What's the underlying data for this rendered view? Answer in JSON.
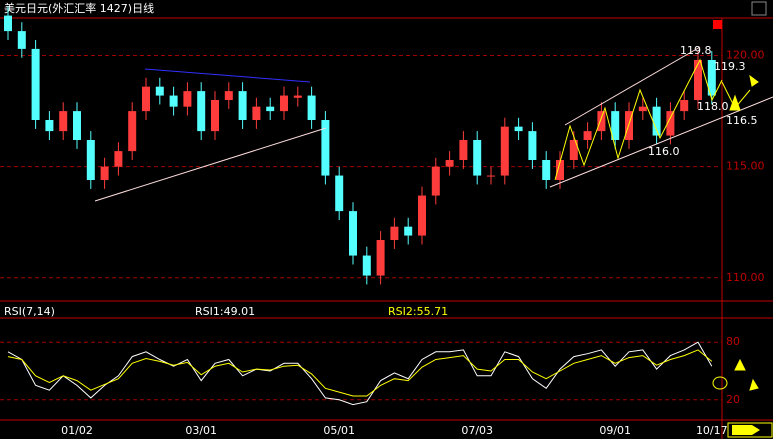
{
  "chart_data": [
    {
      "type": "candlestick",
      "title": "美元日元(外汇汇率 1427)日线",
      "categories": [
        null,
        null,
        null,
        null,
        null,
        "01/02",
        null,
        null,
        null,
        null,
        null,
        null,
        null,
        null,
        "03/01",
        null,
        null,
        null,
        null,
        null,
        null,
        null,
        null,
        null,
        "05/01",
        null,
        null,
        null,
        null,
        null,
        null,
        null,
        null,
        null,
        "07/03",
        null,
        null,
        null,
        null,
        null,
        null,
        null,
        null,
        null,
        "09/01",
        null,
        null,
        null,
        null,
        null,
        null,
        "10/17"
      ],
      "open": [
        121.8,
        121.1,
        120.3,
        117.1,
        116.6,
        117.5,
        116.2,
        114.4,
        115.0,
        115.7,
        117.5,
        118.6,
        118.2,
        117.7,
        118.4,
        116.6,
        118.0,
        118.4,
        117.1,
        117.7,
        117.5,
        118.1,
        118.2,
        117.1,
        114.6,
        113.0,
        111.0,
        110.1,
        111.7,
        112.3,
        111.9,
        113.7,
        115.0,
        115.3,
        116.2,
        114.6,
        114.6,
        116.8,
        116.6,
        115.3,
        114.4,
        115.3,
        116.2,
        116.6,
        117.5,
        116.2,
        117.5,
        117.7,
        116.4,
        117.5,
        118.0,
        119.8
      ],
      "high": [
        122.2,
        121.5,
        120.7,
        117.5,
        117.9,
        117.9,
        116.6,
        115.4,
        116.1,
        117.9,
        119.0,
        119.0,
        118.6,
        118.8,
        118.8,
        118.4,
        118.8,
        118.8,
        118.1,
        118.1,
        118.6,
        118.6,
        118.6,
        117.5,
        115.0,
        113.4,
        111.4,
        112.1,
        112.7,
        112.7,
        114.1,
        115.4,
        115.7,
        116.6,
        116.6,
        115.0,
        117.2,
        117.2,
        117.0,
        115.7,
        115.7,
        116.6,
        117.0,
        117.9,
        117.9,
        117.9,
        118.1,
        118.1,
        117.9,
        118.4,
        120.2,
        120.2
      ],
      "low": [
        120.7,
        119.9,
        116.7,
        116.2,
        116.2,
        115.8,
        114.0,
        114.0,
        114.6,
        115.3,
        117.1,
        117.8,
        117.3,
        117.3,
        116.2,
        116.2,
        117.6,
        116.7,
        116.7,
        117.1,
        117.1,
        117.7,
        116.7,
        114.2,
        112.6,
        110.6,
        109.7,
        109.7,
        111.3,
        111.5,
        111.5,
        113.3,
        114.6,
        114.9,
        114.2,
        114.2,
        114.2,
        116.2,
        114.9,
        114.0,
        114.0,
        114.9,
        115.8,
        116.2,
        115.8,
        115.8,
        117.1,
        116.0,
        116.0,
        117.1,
        117.6,
        117.8
      ],
      "close": [
        121.1,
        120.3,
        117.1,
        116.6,
        117.5,
        116.2,
        114.4,
        115.0,
        115.7,
        117.5,
        118.6,
        118.2,
        117.7,
        118.4,
        116.6,
        118.0,
        118.4,
        117.1,
        117.7,
        117.5,
        118.2,
        118.2,
        117.1,
        114.6,
        113.0,
        111.0,
        110.1,
        111.7,
        112.3,
        111.9,
        113.7,
        115.0,
        115.3,
        116.2,
        114.6,
        114.6,
        116.8,
        116.6,
        115.3,
        114.4,
        115.3,
        116.2,
        116.6,
        117.5,
        116.2,
        117.5,
        117.7,
        116.4,
        117.5,
        118.0,
        119.8,
        118.2
      ],
      "up_color": "#ff3c3c",
      "down_color": "#54ffff",
      "ylim": [
        109,
        121.6
      ],
      "yticks": [
        {
          "value": 120,
          "label": "120.00"
        },
        {
          "value": 115,
          "label": "115.00"
        },
        {
          "value": 110,
          "label": "110.00"
        }
      ],
      "grid": true,
      "annotations": [
        "119.8",
        "119.3",
        "118.0",
        "116.5",
        "116.0"
      ]
    },
    {
      "type": "line",
      "title": "RSI(7,14)",
      "series": [
        {
          "name": "RSI1:49.01",
          "color": "#ffffff",
          "values": [
            70,
            62,
            35,
            30,
            45,
            35,
            22,
            35,
            45,
            65,
            70,
            62,
            55,
            62,
            40,
            58,
            62,
            45,
            52,
            50,
            58,
            58,
            42,
            22,
            20,
            15,
            18,
            40,
            48,
            42,
            62,
            70,
            70,
            72,
            45,
            45,
            70,
            65,
            42,
            32,
            52,
            65,
            68,
            72,
            55,
            70,
            72,
            52,
            66,
            72,
            80,
            55
          ]
        },
        {
          "name": "RSI2:55.71",
          "color": "#ffff00",
          "values": [
            65,
            62,
            45,
            38,
            45,
            40,
            30,
            36,
            42,
            58,
            63,
            60,
            56,
            59,
            46,
            55,
            58,
            49,
            52,
            51,
            55,
            56,
            47,
            32,
            28,
            24,
            24,
            35,
            42,
            40,
            54,
            62,
            64,
            66,
            52,
            50,
            62,
            62,
            49,
            42,
            50,
            58,
            62,
            66,
            58,
            64,
            66,
            56,
            62,
            66,
            72,
            60
          ]
        }
      ],
      "ylim": [
        0,
        100
      ],
      "yticks": [
        20,
        80
      ],
      "grid": true
    }
  ]
}
